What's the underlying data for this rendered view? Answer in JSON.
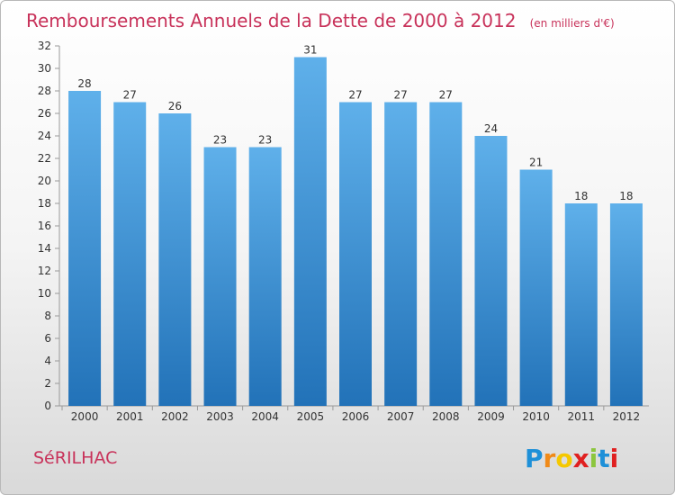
{
  "title": "Remboursements Annuels de la Dette de 2000 à 2012",
  "subtitle": "(en milliers d'€)",
  "commune": "SéRILHAC",
  "logo": {
    "letters": [
      "P",
      "r",
      "o",
      "x",
      "i",
      "t",
      "i"
    ],
    "colors": [
      "#1e90d8",
      "#f08a18",
      "#f5c800",
      "#e02020",
      "#8cc63e",
      "#1e90d8",
      "#e02020"
    ]
  },
  "colors": {
    "bar_top": "#5fb0ea",
    "bar_bottom": "#2272b8",
    "title": "#c8325a"
  },
  "chart_data": {
    "type": "bar",
    "title": "Remboursements Annuels de la Dette de 2000 à 2012",
    "subtitle": "(en milliers d'€)",
    "categories": [
      "2000",
      "2001",
      "2002",
      "2003",
      "2004",
      "2005",
      "2006",
      "2007",
      "2008",
      "2009",
      "2010",
      "2011",
      "2012"
    ],
    "values": [
      28,
      27,
      26,
      23,
      23,
      31,
      27,
      27,
      27,
      24,
      21,
      18,
      18
    ],
    "ylim": [
      0,
      32
    ],
    "yticks": [
      0,
      2,
      4,
      6,
      8,
      10,
      12,
      14,
      16,
      18,
      20,
      22,
      24,
      26,
      28,
      30,
      32
    ],
    "grid": false,
    "xlabel": "",
    "ylabel": ""
  }
}
